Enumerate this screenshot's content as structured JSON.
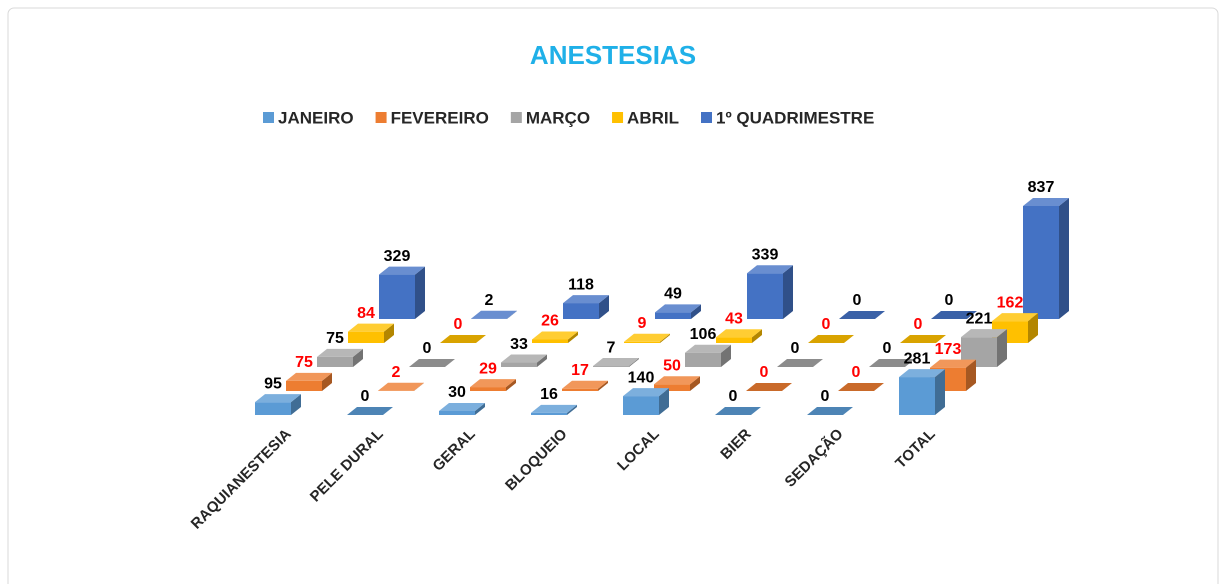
{
  "chart_data": {
    "type": "bar3d",
    "title": "ANESTESIAS",
    "categories": [
      "RAQUIANESTESIA",
      "PELE DURAL",
      "GERAL",
      "BLOQUEIO",
      "LOCAL",
      "BIER",
      "SEDAÇÃO",
      "TOTAL"
    ],
    "series": [
      {
        "name": "JANEIRO",
        "color": "#5b9bd5",
        "label_color": "#000000",
        "values": [
          95,
          0,
          30,
          16,
          140,
          0,
          0,
          281
        ]
      },
      {
        "name": "FEVEREIRO",
        "color": "#ed7d31",
        "label_color": "#ff0000",
        "values": [
          75,
          2,
          29,
          17,
          50,
          0,
          0,
          173
        ]
      },
      {
        "name": "MARÇO",
        "color": "#a5a5a5",
        "label_color": "#000000",
        "values": [
          75,
          0,
          33,
          7,
          106,
          0,
          0,
          221
        ]
      },
      {
        "name": "ABRIL",
        "color": "#ffc000",
        "label_color": "#ff0000",
        "values": [
          84,
          0,
          26,
          9,
          43,
          0,
          0,
          162
        ]
      },
      {
        "name": "1º QUADRIMESTRE",
        "color": "#4472c4",
        "label_color": "#000000",
        "values": [
          329,
          2,
          118,
          49,
          339,
          0,
          0,
          837
        ]
      }
    ],
    "legend": "top"
  }
}
